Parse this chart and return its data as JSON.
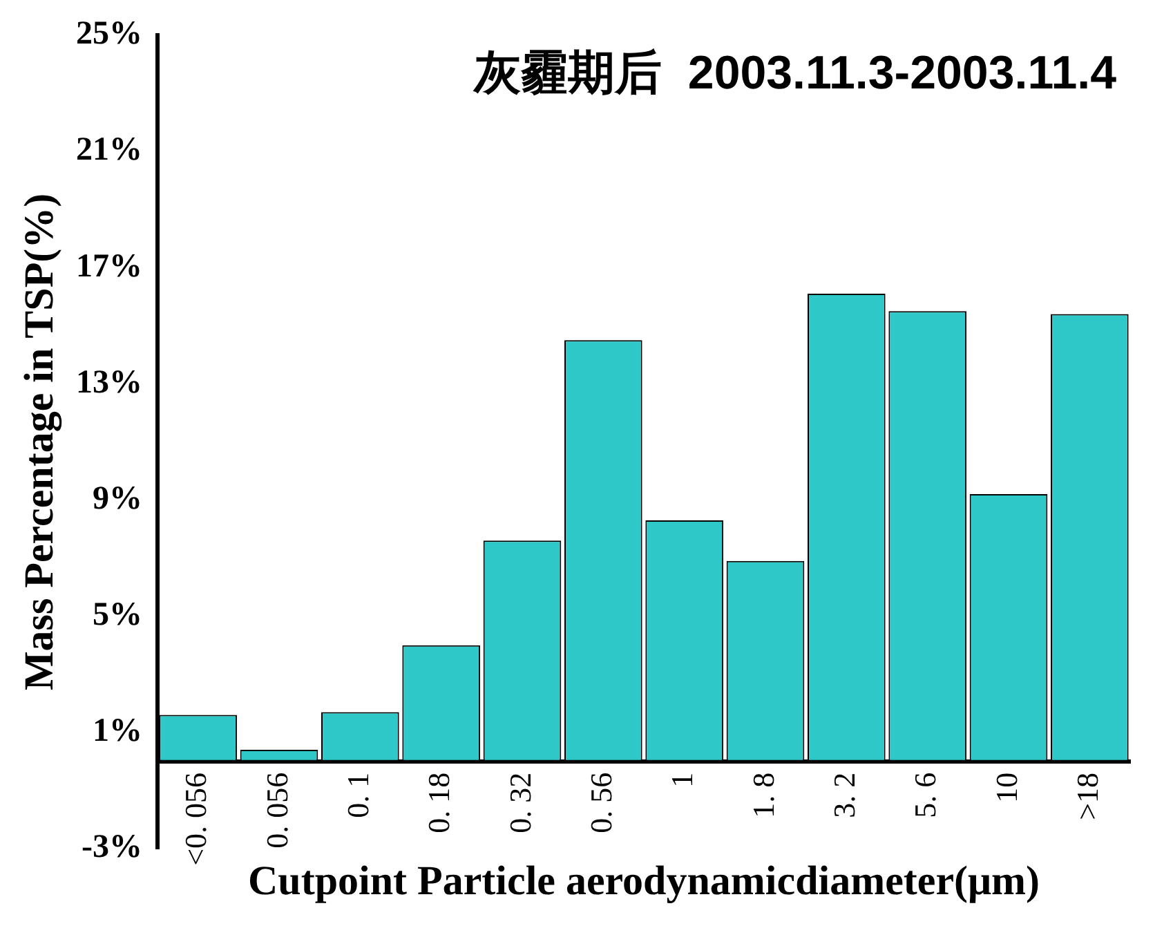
{
  "chart_data": {
    "type": "bar",
    "title": "灰霾期后  2003.11.3-2003.11.4",
    "xlabel": "Cutpoint Particle aerodynamicdiameter(μm)",
    "ylabel": "Mass Percentage in TSP(%)",
    "categories": [
      "<0. 056",
      "0. 056",
      "0. 1",
      "0. 18",
      "0. 32",
      "0. 56",
      "1",
      "1. 8",
      "3. 2",
      "5. 6",
      "10",
      ">18"
    ],
    "values": [
      1.6,
      0.4,
      1.7,
      4.0,
      7.6,
      14.5,
      8.3,
      6.9,
      16.1,
      15.5,
      9.2,
      15.4
    ],
    "color": "#2ec8c8",
    "ylim": [
      -3,
      25
    ],
    "yticks": [
      {
        "value": -3,
        "label": "-3%"
      },
      {
        "value": 1,
        "label": "1%"
      },
      {
        "value": 5,
        "label": "5%"
      },
      {
        "value": 9,
        "label": "9%"
      },
      {
        "value": 13,
        "label": "13%"
      },
      {
        "value": 17,
        "label": "17%"
      },
      {
        "value": 21,
        "label": "21%"
      },
      {
        "value": 25,
        "label": "25%"
      }
    ],
    "grid": false,
    "legend": false
  }
}
